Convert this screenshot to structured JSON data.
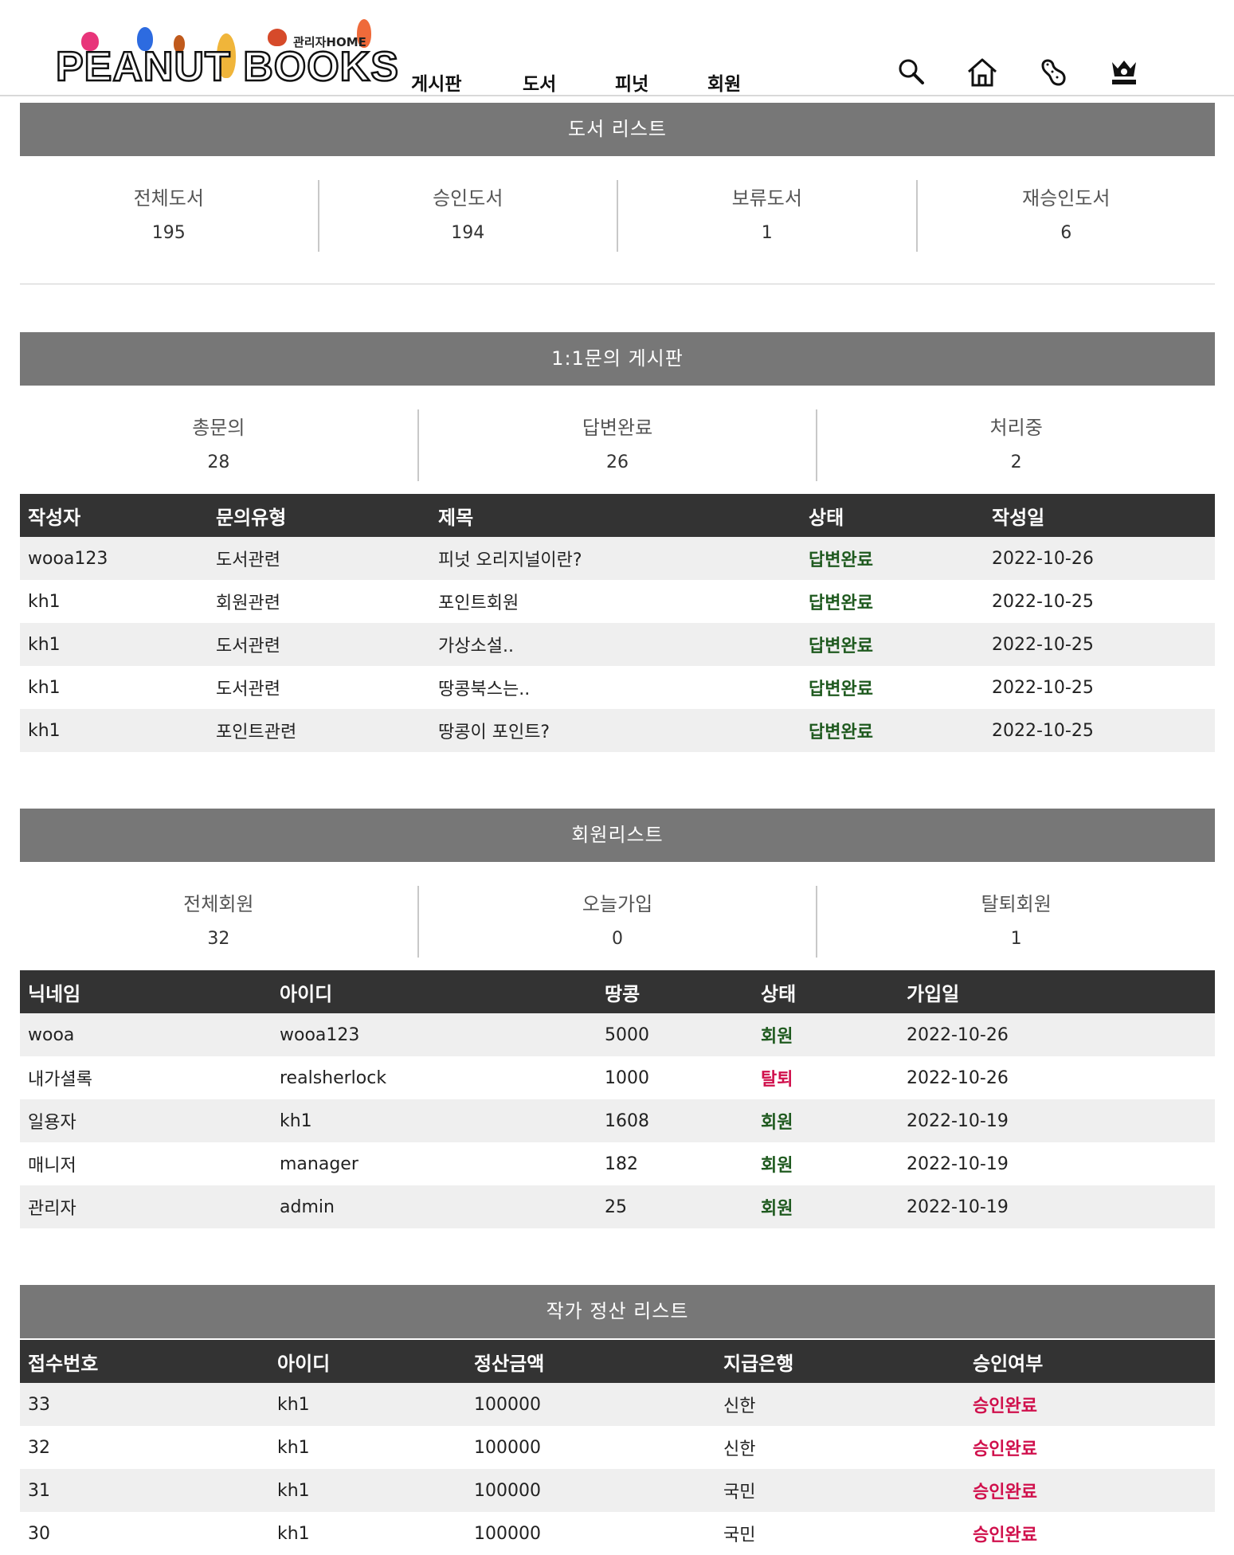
{
  "header": {
    "logo_text": "PEANUT BOOKS",
    "logo_admin": "관리자HOME",
    "nav": [
      "게시판",
      "도서",
      "피넛",
      "회원"
    ],
    "icons": [
      "search-icon",
      "home-icon",
      "peanut-icon",
      "crown-icon"
    ]
  },
  "books": {
    "title": "도서 리스트",
    "stats": [
      {
        "label": "전체도서",
        "value": "195"
      },
      {
        "label": "승인도서",
        "value": "194"
      },
      {
        "label": "보류도서",
        "value": "1"
      },
      {
        "label": "재승인도서",
        "value": "6"
      }
    ]
  },
  "inquiry": {
    "title": "1:1문의 게시판",
    "stats": [
      {
        "label": "총문의",
        "value": "28"
      },
      {
        "label": "답변완료",
        "value": "26"
      },
      {
        "label": "처리중",
        "value": "2"
      }
    ],
    "columns": [
      "작성자",
      "문의유형",
      "제목",
      "상태",
      "작성일"
    ],
    "rows": [
      [
        "wooa123",
        "도서관련",
        "피넛 오리지널이란?",
        "답변완료",
        "2022-10-26"
      ],
      [
        "kh1",
        "회원관련",
        "포인트회원",
        "답변완료",
        "2022-10-25"
      ],
      [
        "kh1",
        "도서관련",
        "가상소설..",
        "답변완료",
        "2022-10-25"
      ],
      [
        "kh1",
        "도서관련",
        "땅콩북스는..",
        "답변완료",
        "2022-10-25"
      ],
      [
        "kh1",
        "포인트관련",
        "땅콩이 포인트?",
        "답변완료",
        "2022-10-25"
      ]
    ]
  },
  "members": {
    "title": "회원리스트",
    "stats": [
      {
        "label": "전체회원",
        "value": "32"
      },
      {
        "label": "오늘가입",
        "value": "0"
      },
      {
        "label": "탈퇴회원",
        "value": "1"
      }
    ],
    "columns": [
      "닉네임",
      "아이디",
      "땅콩",
      "상태",
      "가입일"
    ],
    "rows": [
      [
        "wooa",
        "wooa123",
        "5000",
        "회원",
        "2022-10-26"
      ],
      [
        "내가셜록",
        "realsherlock",
        "1000",
        "탈퇴",
        "2022-10-26"
      ],
      [
        "일용자",
        "kh1",
        "1608",
        "회원",
        "2022-10-19"
      ],
      [
        "매니저",
        "manager",
        "182",
        "회원",
        "2022-10-19"
      ],
      [
        "관리자",
        "admin",
        "25",
        "회원",
        "2022-10-19"
      ]
    ]
  },
  "settlement": {
    "title": "작가 정산 리스트",
    "columns": [
      "접수번호",
      "아이디",
      "정산금액",
      "지급은행",
      "승인여부"
    ],
    "rows": [
      [
        "33",
        "kh1",
        "100000",
        "신한",
        "승인완료"
      ],
      [
        "32",
        "kh1",
        "100000",
        "신한",
        "승인완료"
      ],
      [
        "31",
        "kh1",
        "100000",
        "국민",
        "승인완료"
      ],
      [
        "30",
        "kh1",
        "100000",
        "국민",
        "승인완료"
      ]
    ]
  },
  "colors": {
    "section_bar": "#777777",
    "table_header": "#333333",
    "row_alt": "#efefef",
    "status_green": "#1f5a1f",
    "status_red": "#d0104c"
  }
}
